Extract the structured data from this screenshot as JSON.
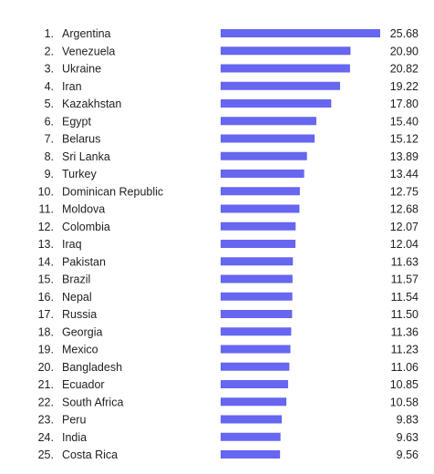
{
  "chart_data": {
    "type": "bar",
    "orientation": "horizontal",
    "title": "",
    "xlabel": "",
    "ylabel": "",
    "grid": false,
    "legend": "none",
    "xlim": [
      0,
      25.68
    ],
    "bar_color": "#6666f0",
    "text_color": "#222222",
    "categories": [
      "Argentina",
      "Venezuela",
      "Ukraine",
      "Iran",
      "Kazakhstan",
      "Egypt",
      "Belarus",
      "Sri Lanka",
      "Turkey",
      "Dominican Republic",
      "Moldova",
      "Colombia",
      "Iraq",
      "Pakistan",
      "Brazil",
      "Nepal",
      "Russia",
      "Georgia",
      "Mexico",
      "Bangladesh",
      "Ecuador",
      "South Africa",
      "Peru",
      "India",
      "Costa Rica"
    ],
    "ranks": [
      "1.",
      "2.",
      "3.",
      "4.",
      "5.",
      "6.",
      "7.",
      "8.",
      "9.",
      "10.",
      "11.",
      "12.",
      "13.",
      "14.",
      "15.",
      "16.",
      "17.",
      "18.",
      "19.",
      "20.",
      "21.",
      "22.",
      "23.",
      "24.",
      "25."
    ],
    "values": [
      25.68,
      20.9,
      20.82,
      19.22,
      17.8,
      15.4,
      15.12,
      13.89,
      13.44,
      12.75,
      12.68,
      12.07,
      12.04,
      11.63,
      11.57,
      11.54,
      11.5,
      11.36,
      11.23,
      11.06,
      10.85,
      10.58,
      9.83,
      9.63,
      9.56
    ],
    "value_labels": [
      "25.68",
      "20.90",
      "20.82",
      "19.22",
      "17.80",
      "15.40",
      "15.12",
      "13.89",
      "13.44",
      "12.75",
      "12.68",
      "12.07",
      "12.04",
      "11.63",
      "11.57",
      "11.54",
      "11.50",
      "11.36",
      "11.23",
      "11.06",
      "10.85",
      "10.58",
      "9.83",
      "9.63",
      "9.56"
    ]
  }
}
